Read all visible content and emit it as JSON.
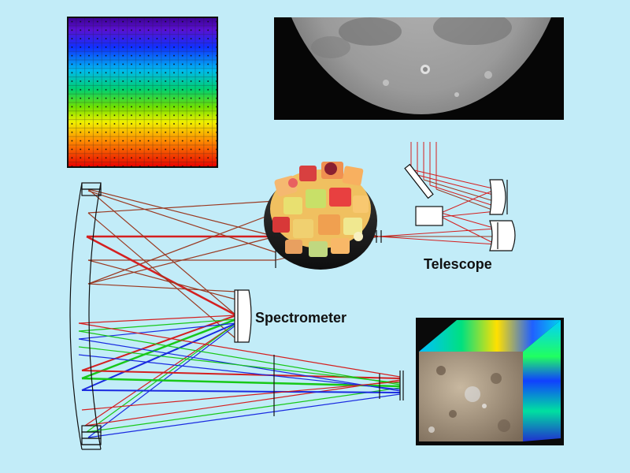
{
  "labels": {
    "telescope": "Telescope",
    "spectrometer": "Spectrometer"
  },
  "colors": {
    "background": "#c2ecf8",
    "ray_red": "#d42020",
    "ray_green": "#18c818",
    "ray_blue": "#1a2ae0",
    "ray_brown": "#9a3a22",
    "optics_outline": "#111111"
  },
  "elements": {
    "grid_icon": "color-pixel-grid",
    "moon_icon": "moon-photo",
    "fruit_icon": "fruit-bowl",
    "cube_icon": "hyperspectral-cube"
  }
}
